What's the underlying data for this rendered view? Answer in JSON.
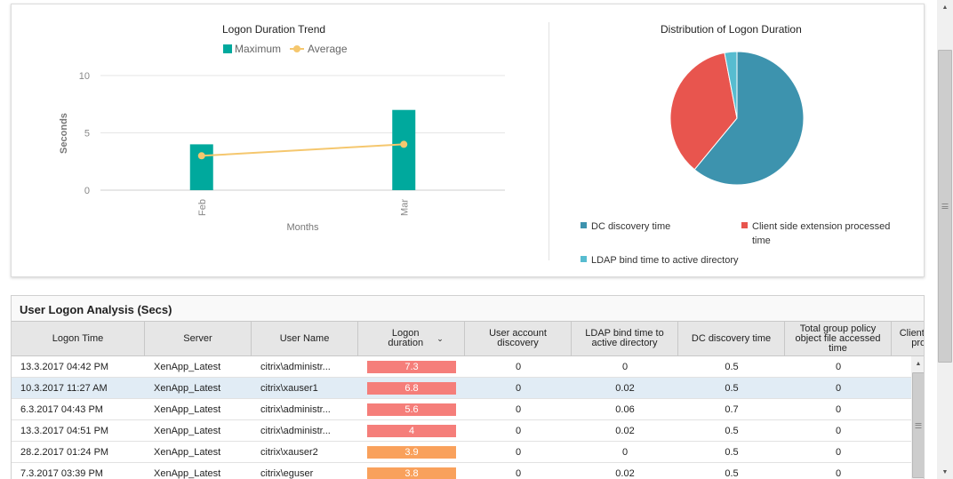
{
  "trend_chart": {
    "title": "Logon Duration Trend",
    "legend": {
      "maximum": "Maximum",
      "average": "Average"
    },
    "colors": {
      "maximum": "#00a99d",
      "average": "#f5c76e"
    },
    "ylabel": "Seconds",
    "xlabel": "Months",
    "y_ticks": [
      "10",
      "5",
      "0"
    ]
  },
  "pie_chart": {
    "title": "Distribution of Logon Duration",
    "legend": [
      {
        "label": "DC discovery time",
        "color": "#3d93ae"
      },
      {
        "label": "Client side extension processed time",
        "color": "#e8554e"
      },
      {
        "label": "LDAP bind time to active directory",
        "color": "#57bcd0"
      }
    ]
  },
  "chart_data": [
    {
      "type": "bar",
      "title": "Logon Duration Trend",
      "xlabel": "Months",
      "ylabel": "Seconds",
      "categories": [
        "Feb",
        "Mar"
      ],
      "ylim": [
        0,
        10
      ],
      "grid": true,
      "legend_position": "top",
      "series": [
        {
          "name": "Maximum",
          "type": "bar",
          "values": [
            4,
            7
          ]
        },
        {
          "name": "Average",
          "type": "line",
          "values": [
            3,
            4
          ]
        }
      ]
    },
    {
      "type": "pie",
      "title": "Distribution of Logon Duration",
      "labels": [
        "DC discovery time",
        "Client side extension processed time",
        "LDAP bind time to active directory"
      ],
      "values": [
        61,
        36,
        3
      ],
      "legend_position": "bottom"
    }
  ],
  "table": {
    "title": "User Logon Analysis (Secs)",
    "columns": [
      "Logon Time",
      "Server",
      "User Name",
      "Logon duration",
      "User account discovery",
      "LDAP bind time to active directory",
      "DC discovery time",
      "Total group policy object file accessed time",
      "Client side extension processed time"
    ],
    "bar_colors": {
      "red": "#f57e7a",
      "orange": "#f9a15c"
    },
    "rows": [
      {
        "logon_time": "13.3.2017 04:42 PM",
        "server": "XenApp_Latest",
        "user": "citrix\\administr...",
        "duration": "7.3",
        "bar": "red",
        "uad": "0",
        "ldap": "0",
        "dc": "0.5",
        "gpo": "0",
        "selected": false
      },
      {
        "logon_time": "10.3.2017 11:27 AM",
        "server": "XenApp_Latest",
        "user": "citrix\\xauser1",
        "duration": "6.8",
        "bar": "red",
        "uad": "0",
        "ldap": "0.02",
        "dc": "0.5",
        "gpo": "0",
        "selected": true
      },
      {
        "logon_time": "6.3.2017 04:43 PM",
        "server": "XenApp_Latest",
        "user": "citrix\\administr...",
        "duration": "5.6",
        "bar": "red",
        "uad": "0",
        "ldap": "0.06",
        "dc": "0.7",
        "gpo": "0",
        "selected": false
      },
      {
        "logon_time": "13.3.2017 04:51 PM",
        "server": "XenApp_Latest",
        "user": "citrix\\administr...",
        "duration": "4",
        "bar": "red",
        "uad": "0",
        "ldap": "0.02",
        "dc": "0.5",
        "gpo": "0",
        "selected": false
      },
      {
        "logon_time": "28.2.2017 01:24 PM",
        "server": "XenApp_Latest",
        "user": "citrix\\xauser2",
        "duration": "3.9",
        "bar": "orange",
        "uad": "0",
        "ldap": "0",
        "dc": "0.5",
        "gpo": "0",
        "selected": false
      },
      {
        "logon_time": "7.3.2017 03:39 PM",
        "server": "XenApp_Latest",
        "user": "citrix\\eguser",
        "duration": "3.8",
        "bar": "orange",
        "uad": "0",
        "ldap": "0.02",
        "dc": "0.5",
        "gpo": "0",
        "selected": false
      }
    ]
  },
  "scrollbars": {
    "window_up_glyph": "▲",
    "window_down_glyph": "▼",
    "table_up_glyph": "▲",
    "table_down_glyph": "▼"
  }
}
